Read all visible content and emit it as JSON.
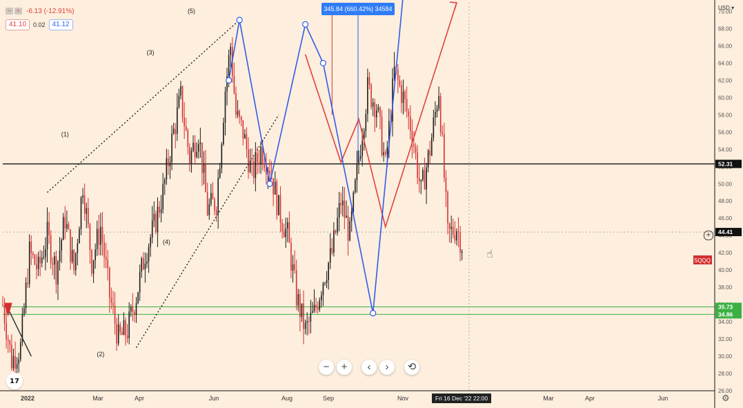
{
  "header": {
    "change": "-6.13 (-12.91%)",
    "bid": "41.10",
    "spread": "0.02",
    "ask": "41.12"
  },
  "measure_label": "345.84 (660.42%) 34584",
  "crosshair_date": "Fri 16 Dec '22",
  "crosshair_time": "22:00",
  "currency_label": "USD",
  "ticker_label": "SQQQ",
  "toolbar": {
    "zoom_out": "−",
    "zoom_in": "+",
    "scroll_left": "‹",
    "scroll_right": "›",
    "reset": "⟲"
  },
  "logo_text": "17",
  "icons": {
    "gear": "gear-icon",
    "cursor": "hand-cursor-icon",
    "crosshair_add": "plus-circle-icon"
  },
  "colors": {
    "background": "#fdeedd",
    "up_candle": "#1a1a1a",
    "down_candle": "#d32f2f",
    "blue_projection": "#2f5bea",
    "red_projection": "#e0413e",
    "support_zone": "#3cb043",
    "resistance_line": "#111111",
    "last_price_tag": "#d32f2f"
  },
  "chart_data": {
    "type": "candlestick",
    "symbol": "SQQQ",
    "currency": "USD",
    "ylim": [
      26,
      71
    ],
    "y_ticks": [
      70,
      68,
      66,
      64,
      62,
      60,
      58,
      56,
      54,
      52,
      50,
      48,
      46,
      44,
      42,
      40,
      38,
      36,
      34,
      32,
      30,
      28,
      26
    ],
    "x_ticks": [
      "2022",
      "Mar",
      "Apr",
      "Jun",
      "Aug",
      "Sep",
      "Nov",
      "Mar",
      "Apr",
      "Jun"
    ],
    "price_tags": [
      {
        "value": 52.31,
        "label": "52.31",
        "style": "dark"
      },
      {
        "value": 44.41,
        "label": "44.41",
        "style": "dark"
      },
      {
        "value": 35.73,
        "label": "35.73",
        "style": "green"
      },
      {
        "value": 34.86,
        "label": "34.86",
        "style": "green"
      }
    ],
    "horizontal_lines": [
      {
        "value": 52.31,
        "color": "#111111",
        "name": "resistance"
      },
      {
        "value": 35.73,
        "color": "#3cb043",
        "name": "support-upper"
      },
      {
        "value": 34.86,
        "color": "#3cb043",
        "name": "support-lower"
      }
    ],
    "wave_labels": [
      "(1)",
      "(2)",
      "(3)",
      "(4)",
      "(5)"
    ],
    "price_path": [
      [
        0,
        36
      ],
      [
        5,
        29.5
      ],
      [
        10,
        31
      ],
      [
        15,
        42
      ],
      [
        20,
        40
      ],
      [
        25,
        44
      ],
      [
        30,
        40
      ],
      [
        35,
        46
      ],
      [
        40,
        40
      ],
      [
        45,
        50
      ],
      [
        50,
        41
      ],
      [
        55,
        45
      ],
      [
        60,
        37
      ],
      [
        65,
        32
      ],
      [
        70,
        33
      ],
      [
        75,
        37
      ],
      [
        80,
        42
      ],
      [
        85,
        45
      ],
      [
        90,
        49
      ],
      [
        95,
        55
      ],
      [
        100,
        60
      ],
      [
        105,
        53
      ],
      [
        110,
        56
      ],
      [
        115,
        47
      ],
      [
        120,
        48
      ],
      [
        125,
        61
      ],
      [
        128,
        66
      ],
      [
        131,
        58
      ],
      [
        135,
        56
      ],
      [
        140,
        51
      ],
      [
        145,
        54
      ],
      [
        150,
        52
      ],
      [
        155,
        47
      ],
      [
        160,
        44
      ],
      [
        165,
        37
      ],
      [
        170,
        33
      ],
      [
        175,
        35
      ],
      [
        180,
        39
      ],
      [
        185,
        42
      ],
      [
        190,
        48
      ],
      [
        195,
        44
      ],
      [
        200,
        53
      ],
      [
        205,
        61
      ],
      [
        210,
        59
      ],
      [
        215,
        52
      ],
      [
        220,
        63
      ],
      [
        225,
        60
      ],
      [
        230,
        56
      ],
      [
        235,
        49
      ],
      [
        240,
        54
      ],
      [
        245,
        61
      ],
      [
        250,
        44
      ],
      [
        255,
        45
      ],
      [
        258,
        43
      ]
    ],
    "blue_projection": [
      [
        127,
        62
      ],
      [
        133,
        69
      ],
      [
        150,
        50
      ],
      [
        170,
        68.5
      ],
      [
        180,
        64
      ],
      [
        208,
        35
      ],
      [
        225,
        72
      ]
    ],
    "red_projection": [
      [
        170,
        65
      ],
      [
        190,
        52.5
      ],
      [
        200,
        57.5
      ],
      [
        215,
        45
      ],
      [
        255,
        71
      ]
    ],
    "wave_channel_upper": [
      [
        25,
        49
      ],
      [
        133,
        69
      ]
    ],
    "wave_channel_lower": [
      [
        75,
        31
      ],
      [
        155,
        58
      ]
    ],
    "last_price": 41.12
  }
}
